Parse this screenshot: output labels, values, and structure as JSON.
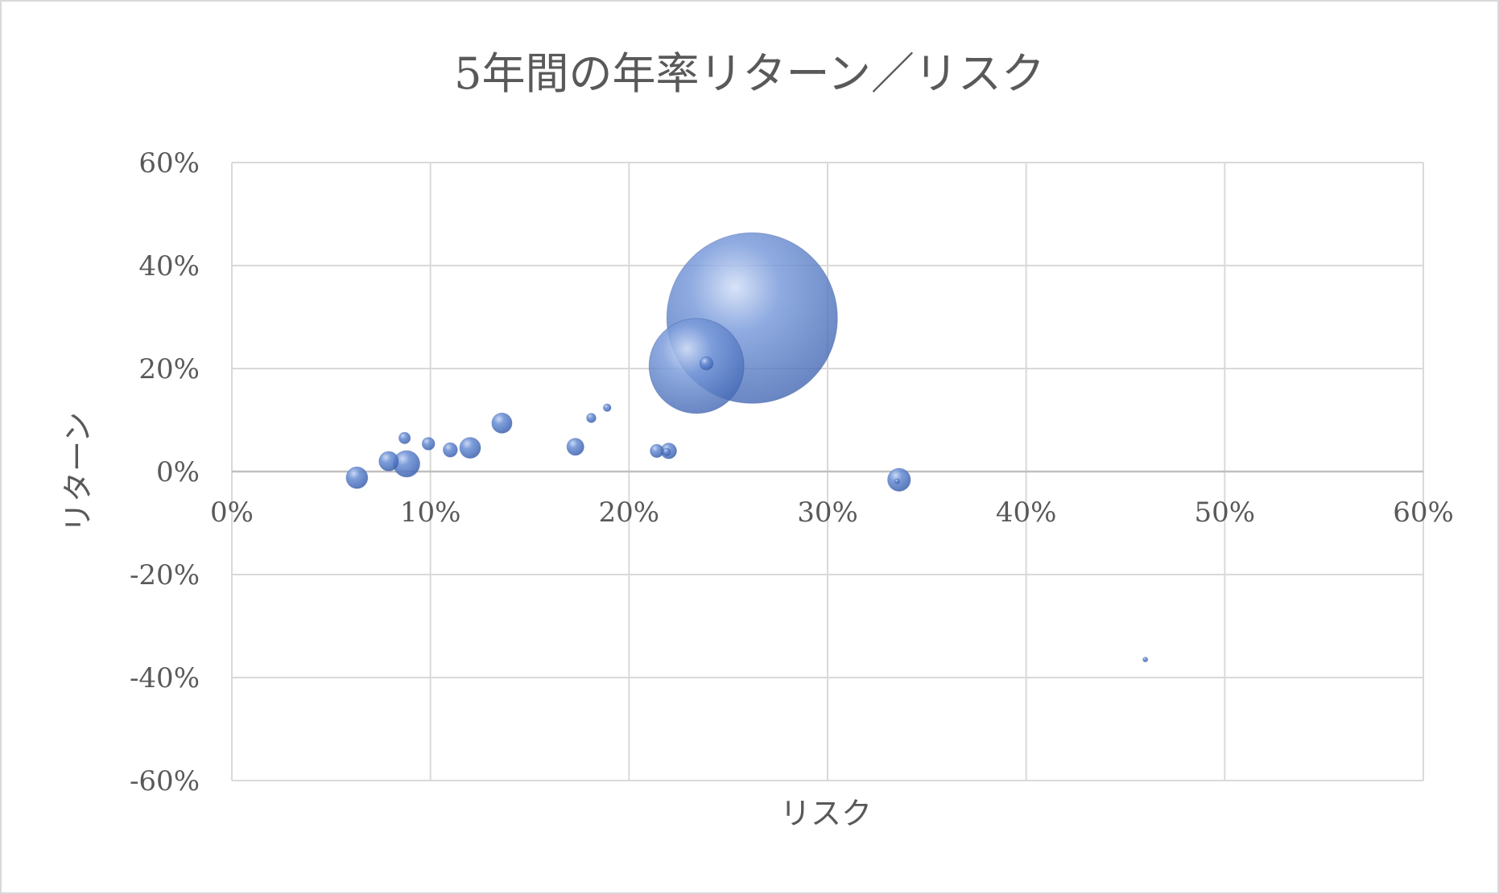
{
  "chart_data": {
    "type": "bubble",
    "title": "5年間の年率リターン／リスク",
    "xlabel": "リスク",
    "ylabel": "リターン",
    "xlim": [
      0,
      60
    ],
    "ylim": [
      -60,
      60
    ],
    "x_ticks": [
      0,
      10,
      20,
      30,
      40,
      50,
      60
    ],
    "y_ticks": [
      60,
      40,
      20,
      0,
      -20,
      -40,
      -60
    ],
    "x_tick_labels": [
      "0%",
      "10%",
      "20%",
      "30%",
      "40%",
      "50%",
      "60%"
    ],
    "y_tick_labels": [
      "60%",
      "40%",
      "20%",
      "0%",
      "-20%",
      "-40%",
      "-60%"
    ],
    "grid": true,
    "bubble_color": "#4a72c4",
    "points": [
      {
        "x": 26.2,
        "y": 29.8,
        "size": 100
      },
      {
        "x": 23.4,
        "y": 20.5,
        "size": 31
      },
      {
        "x": 23.9,
        "y": 21.0,
        "size": 0.6
      },
      {
        "x": 6.3,
        "y": -1.2,
        "size": 1.6
      },
      {
        "x": 8.8,
        "y": 1.5,
        "size": 2.4
      },
      {
        "x": 7.9,
        "y": 2.0,
        "size": 1.3
      },
      {
        "x": 8.7,
        "y": 6.5,
        "size": 0.45
      },
      {
        "x": 9.9,
        "y": 5.4,
        "size": 0.55
      },
      {
        "x": 11.0,
        "y": 4.2,
        "size": 0.7
      },
      {
        "x": 12.0,
        "y": 4.6,
        "size": 1.5
      },
      {
        "x": 13.6,
        "y": 9.4,
        "size": 1.4
      },
      {
        "x": 17.3,
        "y": 4.8,
        "size": 1.0
      },
      {
        "x": 18.1,
        "y": 10.4,
        "size": 0.3
      },
      {
        "x": 18.9,
        "y": 12.4,
        "size": 0.2
      },
      {
        "x": 21.4,
        "y": 4.0,
        "size": 0.6
      },
      {
        "x": 22.0,
        "y": 4.0,
        "size": 0.85
      },
      {
        "x": 21.9,
        "y": 3.8,
        "size": 0.2
      },
      {
        "x": 33.6,
        "y": -1.6,
        "size": 1.8
      },
      {
        "x": 33.5,
        "y": -1.9,
        "size": 0.05
      },
      {
        "x": 46.0,
        "y": -36.5,
        "size": 0.03
      }
    ]
  }
}
